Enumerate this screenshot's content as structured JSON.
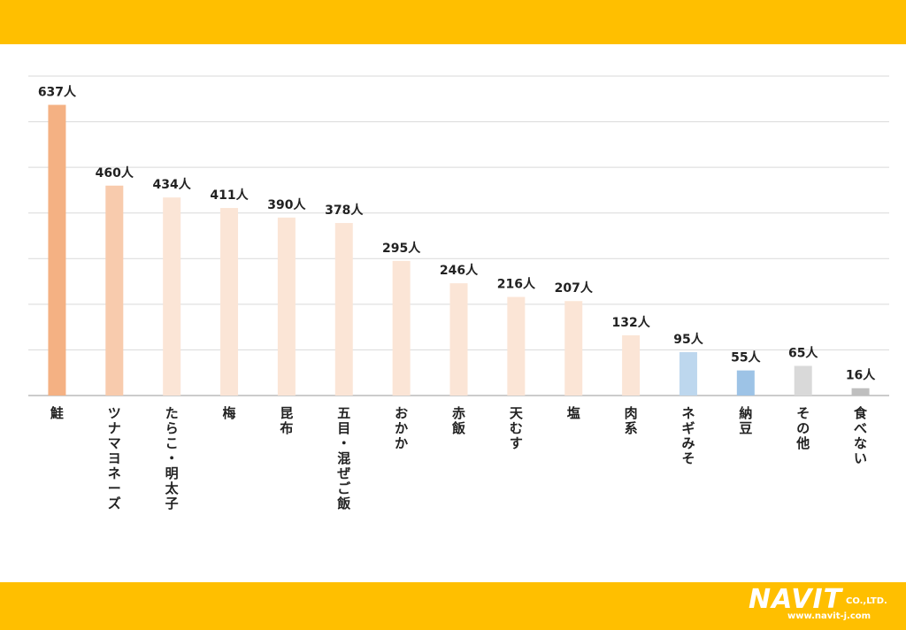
{
  "chart_data": {
    "type": "bar",
    "title": "",
    "xlabel": "",
    "ylabel": "",
    "ylim": [
      0,
      700
    ],
    "grid": true,
    "categories": [
      "鮭",
      "ツナマヨネーズ",
      "たらこ・明太子",
      "梅",
      "昆布",
      "五目・混ぜご飯",
      "おかか",
      "赤飯",
      "天むす",
      "塩",
      "肉系",
      "ネギみそ",
      "納豆",
      "その他",
      "食べない"
    ],
    "values": [
      637,
      460,
      434,
      411,
      390,
      378,
      295,
      246,
      216,
      207,
      132,
      95,
      55,
      65,
      16
    ],
    "value_labels": [
      "637人",
      "460人",
      "434人",
      "411人",
      "390人",
      "378人",
      "295人",
      "246人",
      "216人",
      "207人",
      "132人",
      "95人",
      "55人",
      "65人",
      "16人"
    ],
    "colors": [
      "#F4B183",
      "#F8CBAD",
      "#FBE5D6",
      "#FBE5D6",
      "#FBE5D6",
      "#FBE5D6",
      "#FBE5D6",
      "#FBE5D6",
      "#FBE5D6",
      "#FBE5D6",
      "#FBE5D6",
      "#BDD7EE",
      "#9DC3E6",
      "#D9D9D9",
      "#BFBFBF"
    ]
  },
  "brand": {
    "name": "NAVIT",
    "suffix": "CO.,LTD.",
    "url": "www.navit-j.com",
    "band_color": "#FFBF00"
  }
}
